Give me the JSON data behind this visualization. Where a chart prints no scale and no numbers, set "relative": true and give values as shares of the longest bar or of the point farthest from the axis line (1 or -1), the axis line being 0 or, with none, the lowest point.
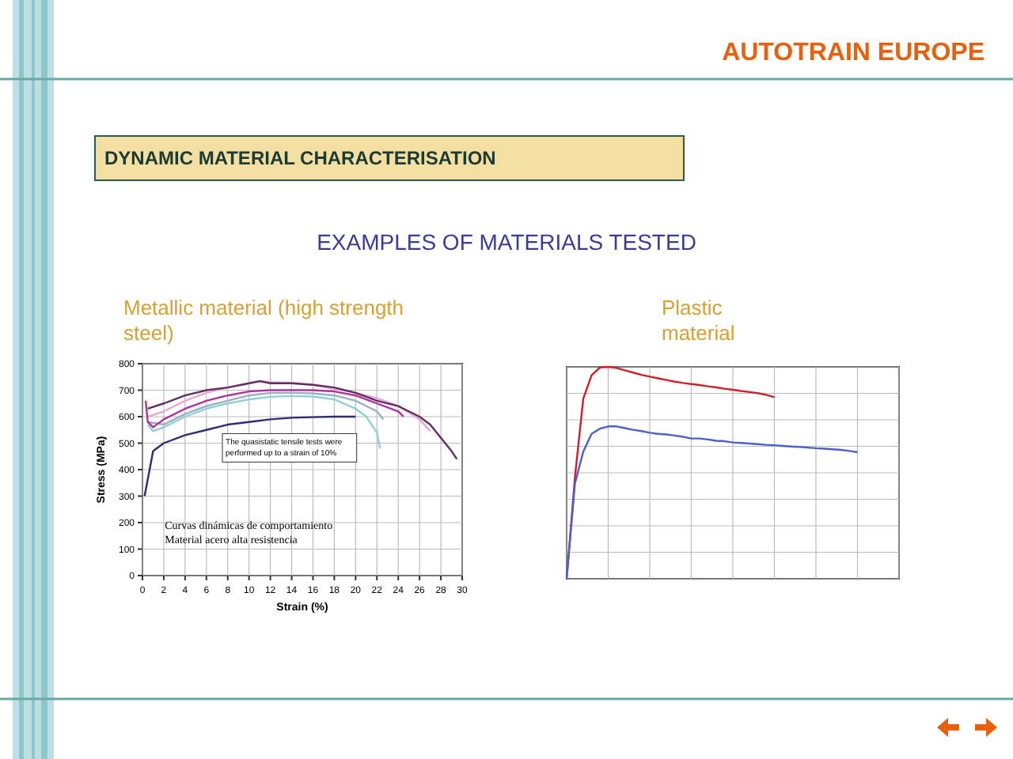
{
  "chart_data": [
    {
      "type": "other",
      "title": "DYNAMIC MATERIAL CHARACTERISATION",
      "subtitle": "EXAMPLES OF MATERIALS TESTED",
      "annotations": [
        "AUTOTRAIN EUROPE"
      ]
    },
    {
      "type": "line",
      "title": "Metallic material (high strength steel)",
      "xlabel": "Strain (%)",
      "ylabel": "Stress (MPa)",
      "xlim": [
        0,
        30
      ],
      "ylim": [
        0,
        800
      ],
      "xticks": [
        0,
        2,
        4,
        6,
        8,
        10,
        12,
        14,
        16,
        18,
        20,
        22,
        24,
        26,
        28,
        30
      ],
      "yticks": [
        0,
        100,
        200,
        300,
        400,
        500,
        600,
        700,
        800
      ],
      "grid": true,
      "annotations": [
        "The quasistatic tensile tests were performed up to a strain of 10%",
        "Curvas dinámicas de comportamiento Material acero alta resistencia"
      ],
      "series": [
        {
          "color": "#2b2b7a",
          "x": [
            0.2,
            1,
            2,
            4,
            6,
            8,
            10,
            12,
            14,
            16,
            18,
            20
          ],
          "values": [
            300,
            470,
            500,
            530,
            550,
            570,
            580,
            590,
            596,
            598,
            600,
            600
          ]
        },
        {
          "color": "#8fd0d8",
          "x": [
            0.5,
            1,
            2,
            4,
            6,
            8,
            10,
            12,
            14,
            16,
            18,
            20,
            21,
            22,
            22.3
          ],
          "values": [
            570,
            545,
            560,
            600,
            630,
            650,
            665,
            675,
            678,
            676,
            665,
            630,
            600,
            540,
            480
          ]
        },
        {
          "color": "#9ab0c0",
          "x": [
            0.5,
            2,
            4,
            6,
            8,
            10,
            12,
            14,
            16,
            18,
            20,
            22,
            22.6
          ],
          "values": [
            580,
            570,
            610,
            640,
            660,
            680,
            690,
            690,
            688,
            680,
            660,
            620,
            590
          ]
        },
        {
          "color": "#e8a8d0",
          "x": [
            0.5,
            2,
            4,
            6,
            8,
            10,
            11,
            12,
            14,
            16,
            18,
            20,
            22,
            24,
            26,
            27
          ],
          "values": [
            600,
            620,
            660,
            690,
            710,
            725,
            735,
            730,
            728,
            720,
            705,
            690,
            670,
            640,
            590,
            545
          ]
        },
        {
          "color": "#b030a0",
          "x": [
            0.3,
            0.5,
            1,
            2,
            4,
            6,
            8,
            10,
            12,
            14,
            16,
            18,
            20,
            22,
            24,
            24.5
          ],
          "values": [
            660,
            580,
            560,
            590,
            630,
            660,
            680,
            695,
            700,
            700,
            700,
            695,
            680,
            650,
            620,
            600
          ]
        },
        {
          "color": "#603060",
          "x": [
            0.5,
            2,
            4,
            6,
            8,
            10,
            11,
            12,
            14,
            16,
            18,
            20,
            22,
            24,
            26,
            27,
            28,
            29,
            29.5
          ],
          "values": [
            630,
            650,
            680,
            700,
            710,
            726,
            734,
            726,
            726,
            720,
            710,
            690,
            660,
            640,
            600,
            570,
            520,
            470,
            440
          ]
        }
      ]
    },
    {
      "type": "line",
      "title": "Plastic material",
      "relative": true,
      "grid": true,
      "categories": [
        null,
        null,
        null,
        null,
        null,
        null,
        null,
        null,
        null,
        null,
        null,
        null,
        null,
        null,
        null,
        null,
        null,
        null,
        null,
        null,
        null,
        null,
        null,
        null,
        null,
        null,
        null,
        null,
        null,
        null,
        null,
        null,
        null,
        null,
        null,
        null,
        null,
        null,
        null,
        null,
        null
      ],
      "series": [
        {
          "color": "#d01f2a",
          "values": [
            0,
            0.48,
            0.85,
            0.96,
            0.997,
            1,
            0.995,
            0.984,
            0.973,
            0.962,
            0.954,
            0.946,
            0.938,
            0.93,
            0.924,
            0.919,
            0.914,
            0.908,
            0.903,
            0.897,
            0.892,
            0.886,
            0.881,
            0.876,
            0.868,
            0.857,
            null,
            null,
            null,
            null,
            null,
            null,
            null,
            null,
            null,
            null,
            null,
            null,
            null,
            null,
            null
          ]
        },
        {
          "color": "#4a5fd0",
          "values": [
            0,
            0.45,
            0.6,
            0.684,
            0.708,
            0.719,
            0.719,
            0.711,
            0.703,
            0.697,
            0.689,
            0.684,
            0.681,
            0.676,
            0.67,
            0.662,
            0.662,
            0.657,
            0.651,
            0.649,
            0.643,
            0.641,
            0.638,
            0.635,
            0.632,
            0.63,
            0.627,
            0.624,
            0.622,
            0.619,
            0.616,
            0.614,
            0.611,
            0.608,
            0.603,
            0.597,
            null,
            null,
            null,
            null,
            null
          ]
        }
      ]
    }
  ]
}
